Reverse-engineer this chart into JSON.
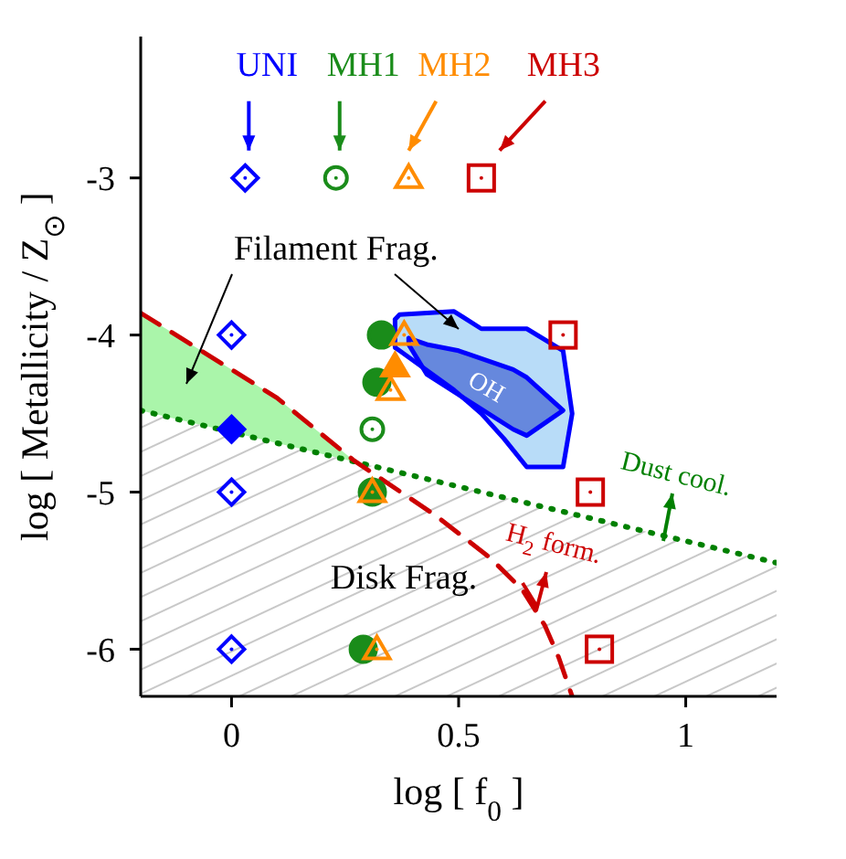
{
  "chart_data": {
    "type": "scatter",
    "xlabel": "log [ f$_{0}$ ]",
    "ylabel": "log [ Metallicity / Z$_{⊙}$ ]",
    "xlim": [
      -0.2,
      1.2
    ],
    "xticks": [
      0,
      0.5,
      1
    ],
    "ylim": [
      -6.3,
      -2.1
    ],
    "yticks": [
      -6,
      -5,
      -4,
      -3
    ],
    "series": [
      {
        "type": "line",
        "color": "#008000",
        "line_style": "dotted",
        "x": [
          -0.2,
          1.2
        ],
        "values": [
          -4.48,
          -5.45
        ]
      },
      {
        "type": "line",
        "color": "#cc0000",
        "line_style": "dashed",
        "x": [
          -0.2,
          0.1,
          0.27,
          0.45,
          0.57,
          0.64,
          0.69,
          0.72,
          0.75
        ],
        "values": [
          -3.86,
          -4.4,
          -4.8,
          -5.15,
          -5.42,
          -5.62,
          -5.85,
          -6.05,
          -6.3
        ]
      },
      {
        "type": "area",
        "color": "#0000ff",
        "x": [
          0.36,
          0.37,
          0.49,
          0.55,
          0.6,
          0.65,
          0.73,
          0.75,
          0.73,
          0.65,
          0.6,
          0.55,
          0.49,
          0.37,
          0.36,
          0.36
        ],
        "values": [
          -3.9,
          -3.87,
          -3.85,
          -3.96,
          -3.96,
          -3.96,
          -4.1,
          -4.5,
          -4.84,
          -4.84,
          -4.66,
          -4.5,
          -4.35,
          -4.1,
          -4.08,
          -3.9
        ]
      },
      {
        "type": "area",
        "color": "#0000ff",
        "x": [
          0.39,
          0.43,
          0.5,
          0.62,
          0.65,
          0.73,
          0.65,
          0.62,
          0.5,
          0.43,
          0.39,
          0.39
        ],
        "values": [
          -4.02,
          -4.06,
          -4.1,
          -4.22,
          -4.27,
          -4.48,
          -4.64,
          -4.6,
          -4.38,
          -4.25,
          -4.06,
          -4.02
        ]
      },
      {
        "name": "UNI",
        "color": "#0000ff",
        "marker": "diamond",
        "x": [
          0.03,
          0,
          0,
          0
        ],
        "values": [
          -3,
          -4,
          -5,
          -6
        ]
      },
      {
        "color": "#0000ff",
        "marker": "diamond",
        "x": [
          0
        ],
        "values": [
          -4.6
        ]
      },
      {
        "color": "#1a8c1a",
        "marker": "circle",
        "x": [
          0.33,
          0.32,
          0.31,
          0.29
        ],
        "values": [
          -4,
          -4.3,
          -5,
          -6
        ]
      },
      {
        "name": "MH1",
        "color": "#1a8c1a",
        "marker": "circle",
        "x": [
          0.23,
          0.31
        ],
        "values": [
          -3,
          -4.6
        ]
      },
      {
        "color": "#ff8c00",
        "marker": "triangle",
        "x": [
          0.36
        ],
        "values": [
          -4.2
        ]
      },
      {
        "name": "MH2",
        "color": "#ff8c00",
        "marker": "triangle",
        "x": [
          0.39,
          0.38,
          0.35,
          0.31,
          0.32
        ],
        "values": [
          -3,
          -4,
          -4.35,
          -5,
          -6
        ]
      },
      {
        "name": "MH3",
        "color": "#cc0000",
        "marker": "square",
        "x": [
          0.55,
          0.73,
          0.79,
          0.81
        ],
        "values": [
          -3,
          -4,
          -5,
          -6
        ]
      }
    ],
    "annotations": [
      "Filament Frag.",
      "OH",
      "Dust cool.",
      "H$_{2}$ form.",
      "Disk Frag."
    ]
  }
}
